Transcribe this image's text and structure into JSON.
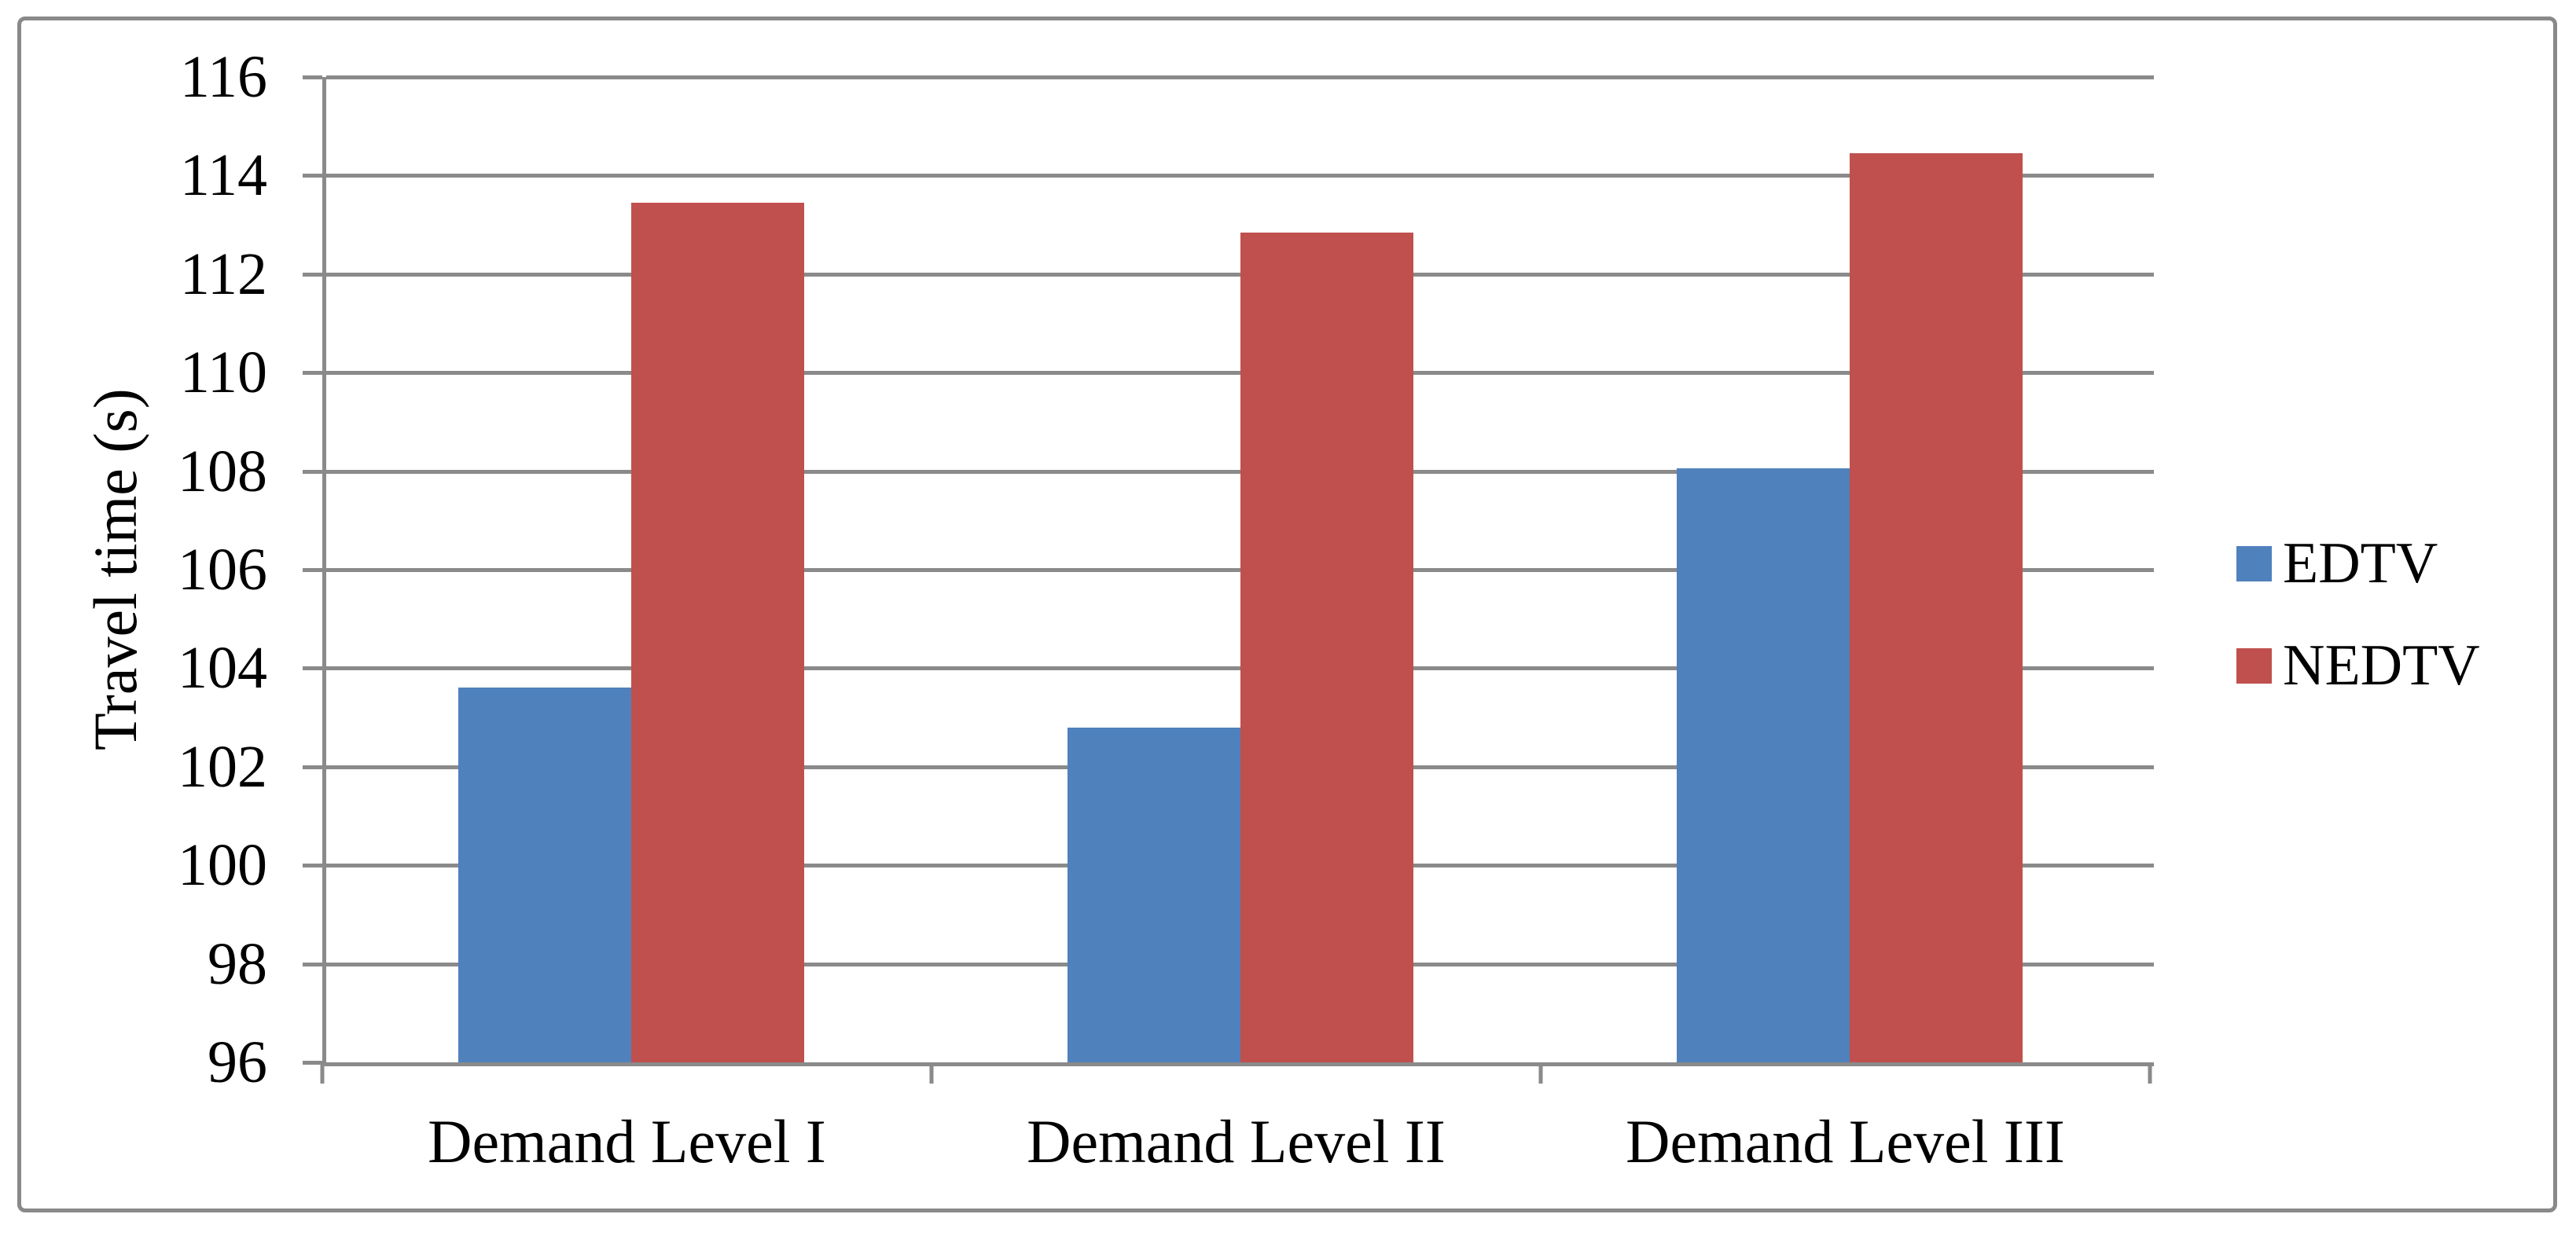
{
  "figure": {
    "background": "#FFFFFF",
    "border_color": "#898989",
    "axis_color": "#8A8A8A",
    "gridline_color": "#8A8A8A",
    "text_color": "#000000"
  },
  "chart_data": {
    "type": "bar",
    "title": "",
    "xlabel": "",
    "ylabel": "Travel time (s)",
    "categories": [
      "Demand Level I",
      "Demand Level II",
      "Demand Level III"
    ],
    "series": [
      {
        "name": "EDTV",
        "color": "#4F81BD",
        "values": [
          103.6,
          102.8,
          108.05
        ]
      },
      {
        "name": "NEDTV",
        "color": "#C0504D",
        "values": [
          113.45,
          112.85,
          114.45
        ]
      }
    ],
    "ylim": [
      96,
      116
    ],
    "ytick_interval": 2,
    "ytick_labels": [
      "96",
      "98",
      "100",
      "102",
      "104",
      "106",
      "108",
      "110",
      "112",
      "114",
      "116"
    ],
    "grid": "horizontal-major",
    "legend_position": "right-middle",
    "legend_entries": [
      "EDTV",
      "NEDTV"
    ]
  }
}
